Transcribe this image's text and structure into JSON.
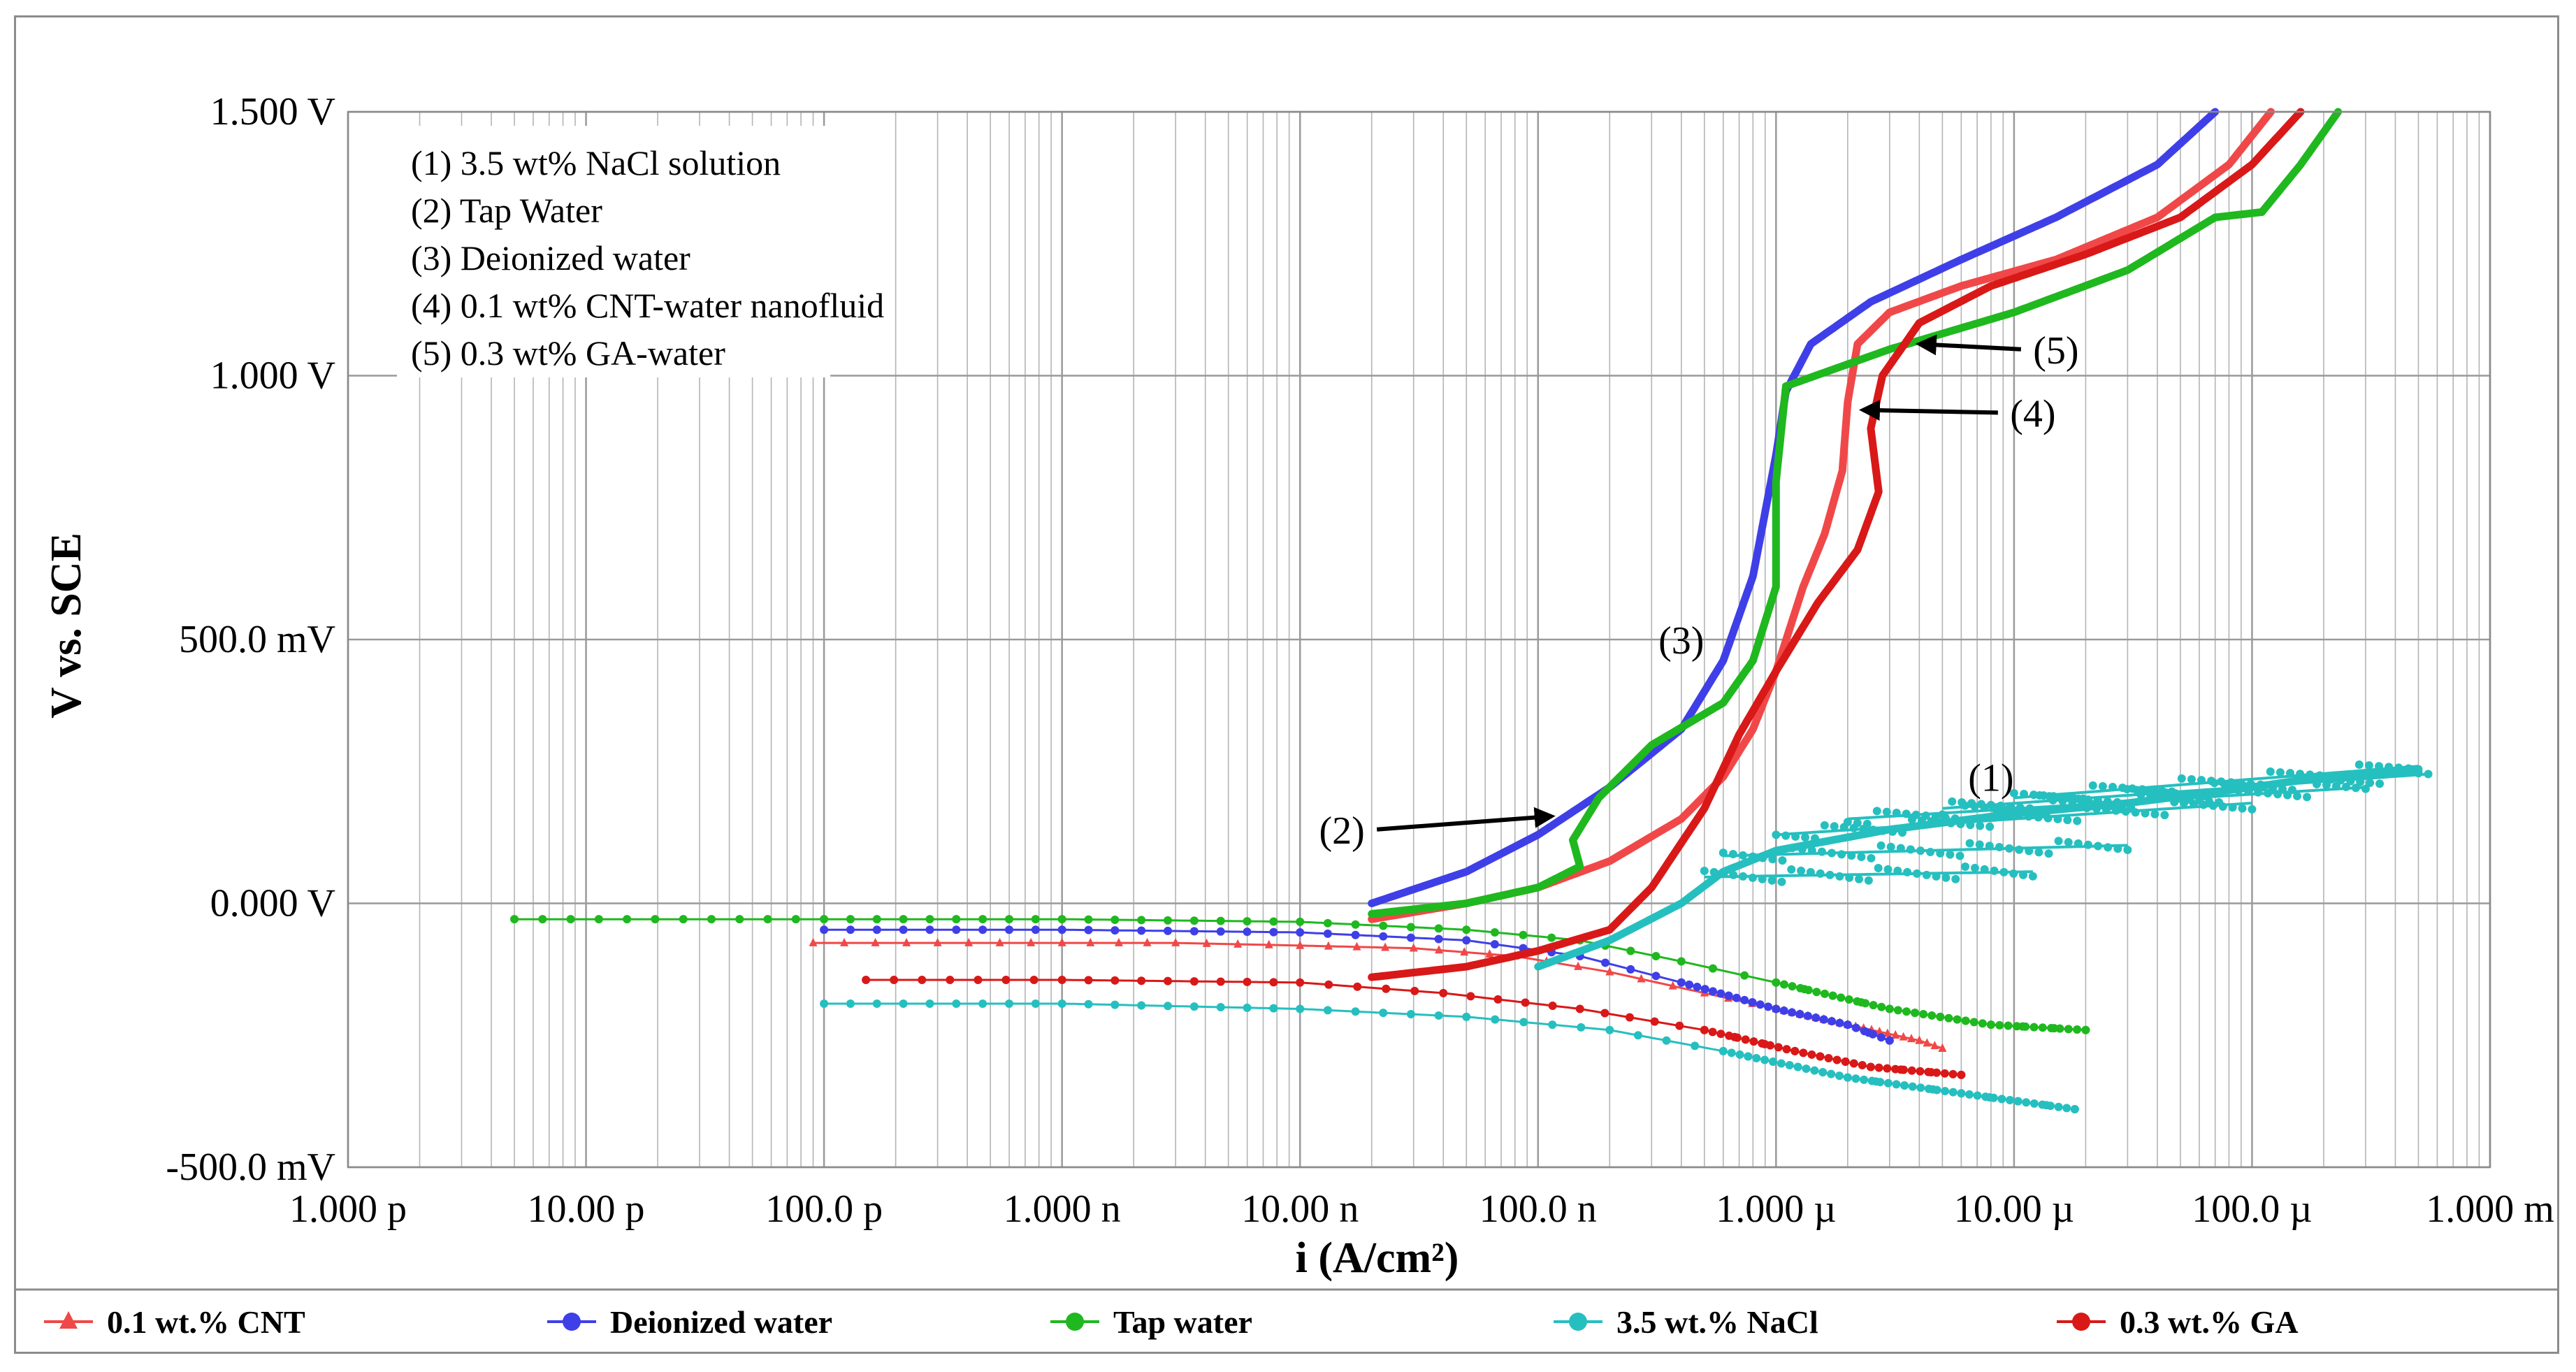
{
  "chart_data": {
    "type": "line",
    "title": "",
    "xlabel": "i (A/cm²)",
    "ylabel": "V vs. SCE",
    "xscale": "log",
    "xlim": [
      1e-12,
      0.001
    ],
    "ylim": [
      -0.5,
      1.5
    ],
    "x_tick_values": [
      1e-12,
      1e-11,
      1e-10,
      1e-09,
      1e-08,
      1e-07,
      1e-06,
      1e-05,
      0.0001,
      0.001
    ],
    "x_tick_labels": [
      "1.000 p",
      "10.00 p",
      "100.0 p",
      "1.000 n",
      "10.00 n",
      "100.0 n",
      "1.000 µ",
      "10.00 µ",
      "100.0 µ",
      "1.000 m"
    ],
    "y_tick_values": [
      1.5,
      1.0,
      0.5,
      0.0,
      -0.5
    ],
    "y_tick_labels": [
      "1.500 V",
      "1.000 V",
      "500.0 mV",
      "0.000 V",
      "-500.0 mV"
    ],
    "grid": true,
    "legend_position": "bottom",
    "annotation_box": [
      "(1) 3.5 wt% NaCl solution",
      "(2) Tap Water",
      "(3) Deionized water",
      "(4) 0.1 wt% CNT-water nanofluid",
      "(5) 0.3 wt% GA-water"
    ],
    "curve_labels": [
      {
        "text": "(1)",
        "x": 8e-06,
        "y": 0.24
      },
      {
        "text": "(2)",
        "x": 1.5e-08,
        "y": 0.14,
        "arrow_to": [
          1.2e-07,
          0.165
        ]
      },
      {
        "text": "(3)",
        "x": 4e-07,
        "y": 0.5
      },
      {
        "text": "(4)",
        "x": 1.2e-05,
        "y": 0.93,
        "arrow_to": [
          2.2e-06,
          0.935
        ]
      },
      {
        "text": "(5)",
        "x": 1.5e-05,
        "y": 1.05,
        "arrow_to": [
          3.8e-06,
          1.06
        ]
      }
    ],
    "series": [
      {
        "name": "0.1 wt.% CNT",
        "color": "#f04848",
        "marker": "triangle",
        "cathodic": [
          [
            9e-11,
            -0.075
          ],
          [
            3e-10,
            -0.075
          ],
          [
            1e-09,
            -0.075
          ],
          [
            3e-09,
            -0.075
          ],
          [
            1e-08,
            -0.08
          ],
          [
            3e-08,
            -0.085
          ],
          [
            8e-08,
            -0.1
          ],
          [
            2e-07,
            -0.13
          ],
          [
            5e-07,
            -0.17
          ],
          [
            1e-06,
            -0.2
          ],
          [
            2e-06,
            -0.23
          ],
          [
            4e-06,
            -0.26
          ],
          [
            5e-06,
            -0.275
          ]
        ],
        "anodic": [
          [
            2e-08,
            -0.03
          ],
          [
            5e-08,
            0.0
          ],
          [
            1e-07,
            0.03
          ],
          [
            2e-07,
            0.08
          ],
          [
            4e-07,
            0.16
          ],
          [
            6e-07,
            0.24
          ],
          [
            8e-07,
            0.33
          ],
          [
            1e-06,
            0.44
          ],
          [
            1.3e-06,
            0.6
          ],
          [
            1.6e-06,
            0.7
          ],
          [
            1.9e-06,
            0.82
          ],
          [
            2e-06,
            0.95
          ],
          [
            2.2e-06,
            1.06
          ],
          [
            3e-06,
            1.12
          ],
          [
            6e-06,
            1.17
          ],
          [
            1.5e-05,
            1.22
          ],
          [
            4e-05,
            1.3
          ],
          [
            8e-05,
            1.4
          ],
          [
            0.00012,
            1.5
          ]
        ]
      },
      {
        "name": "Deionized water",
        "color": "#3f3fe8",
        "marker": "circle",
        "cathodic": [
          [
            1e-10,
            -0.05
          ],
          [
            1e-09,
            -0.05
          ],
          [
            1e-08,
            -0.055
          ],
          [
            5e-08,
            -0.07
          ],
          [
            1.5e-07,
            -0.1
          ],
          [
            4e-07,
            -0.15
          ],
          [
            1e-06,
            -0.2
          ],
          [
            2e-06,
            -0.23
          ],
          [
            3e-06,
            -0.26
          ]
        ],
        "anodic": [
          [
            2e-08,
            0.0
          ],
          [
            5e-08,
            0.06
          ],
          [
            1e-07,
            0.13
          ],
          [
            2e-07,
            0.22
          ],
          [
            4e-07,
            0.33
          ],
          [
            6e-07,
            0.46
          ],
          [
            8e-07,
            0.62
          ],
          [
            1e-06,
            0.85
          ],
          [
            1.1e-06,
            0.97
          ],
          [
            1.4e-06,
            1.06
          ],
          [
            2.5e-06,
            1.14
          ],
          [
            6e-06,
            1.22
          ],
          [
            1.5e-05,
            1.3
          ],
          [
            4e-05,
            1.4
          ],
          [
            7e-05,
            1.5
          ]
        ]
      },
      {
        "name": "Tap water",
        "color": "#1fb81f",
        "marker": "circle",
        "cathodic": [
          [
            5e-12,
            -0.03
          ],
          [
            1e-10,
            -0.03
          ],
          [
            1e-09,
            -0.03
          ],
          [
            1e-08,
            -0.035
          ],
          [
            5e-08,
            -0.05
          ],
          [
            1.5e-07,
            -0.07
          ],
          [
            4e-07,
            -0.11
          ],
          [
            1e-06,
            -0.15
          ],
          [
            3e-06,
            -0.2
          ],
          [
            8e-06,
            -0.23
          ],
          [
            2e-05,
            -0.24
          ]
        ],
        "anodic": [
          [
            2e-08,
            -0.02
          ],
          [
            5e-08,
            0.0
          ],
          [
            1e-07,
            0.03
          ],
          [
            1.5e-07,
            0.07
          ],
          [
            1.4e-07,
            0.12
          ],
          [
            1.8e-07,
            0.2
          ],
          [
            3e-07,
            0.3
          ],
          [
            6e-07,
            0.38
          ],
          [
            8e-07,
            0.46
          ],
          [
            1e-06,
            0.6
          ],
          [
            1e-06,
            0.8
          ],
          [
            1.1e-06,
            0.98
          ],
          [
            3e-06,
            1.05
          ],
          [
            1e-05,
            1.12
          ],
          [
            3e-05,
            1.2
          ],
          [
            7e-05,
            1.3
          ],
          [
            0.00011,
            1.31
          ],
          [
            0.00016,
            1.4
          ],
          [
            0.00023,
            1.5
          ]
        ]
      },
      {
        "name": "3.5 wt.% NaCl",
        "color": "#26bfbf",
        "marker": "circle",
        "cathodic": [
          [
            1e-10,
            -0.19
          ],
          [
            1e-09,
            -0.19
          ],
          [
            1e-08,
            -0.2
          ],
          [
            5e-08,
            -0.215
          ],
          [
            2e-07,
            -0.24
          ],
          [
            6e-07,
            -0.28
          ],
          [
            2e-06,
            -0.33
          ],
          [
            6e-06,
            -0.36
          ],
          [
            1.8e-05,
            -0.39
          ]
        ],
        "anodic": [
          [
            1e-07,
            -0.12
          ],
          [
            2e-07,
            -0.07
          ],
          [
            4e-07,
            0.0
          ],
          [
            6e-07,
            0.06
          ],
          [
            1e-06,
            0.1
          ],
          [
            3e-06,
            0.14
          ],
          [
            1e-05,
            0.17
          ],
          [
            3e-05,
            0.19
          ],
          [
            0.0001,
            0.22
          ],
          [
            0.0002,
            0.24
          ],
          [
            0.0005,
            0.25
          ]
        ],
        "scatter_band": [
          [
            [
              5e-07,
              0.05
            ],
            [
              1.2e-05,
              0.06
            ]
          ],
          [
            [
              6e-07,
              0.09
            ],
            [
              3e-05,
              0.11
            ]
          ],
          [
            [
              1e-06,
              0.13
            ],
            [
              0.0001,
              0.19
            ]
          ],
          [
            [
              2e-06,
              0.16
            ],
            [
              0.0003,
              0.22
            ]
          ],
          [
            [
              5e-06,
              0.18
            ],
            [
              0.00055,
              0.245
            ]
          ],
          [
            [
              1e-05,
              0.2
            ],
            [
              0.0005,
              0.26
            ]
          ]
        ]
      },
      {
        "name": "0.3 wt.% GA",
        "color": "#d91818",
        "marker": "circle",
        "cathodic": [
          [
            1.5e-10,
            -0.145
          ],
          [
            1e-09,
            -0.145
          ],
          [
            1e-08,
            -0.15
          ],
          [
            4e-08,
            -0.17
          ],
          [
            1.5e-07,
            -0.2
          ],
          [
            5e-07,
            -0.24
          ],
          [
            1.2e-06,
            -0.28
          ],
          [
            2.5e-06,
            -0.31
          ],
          [
            6e-06,
            -0.325
          ]
        ],
        "anodic": [
          [
            2e-08,
            -0.14
          ],
          [
            5e-08,
            -0.12
          ],
          [
            1e-07,
            -0.09
          ],
          [
            2e-07,
            -0.05
          ],
          [
            3e-07,
            0.03
          ],
          [
            5e-07,
            0.18
          ],
          [
            7e-07,
            0.32
          ],
          [
            1e-06,
            0.44
          ],
          [
            1.5e-06,
            0.57
          ],
          [
            2.2e-06,
            0.67
          ],
          [
            2.7e-06,
            0.78
          ],
          [
            2.5e-06,
            0.9
          ],
          [
            2.8e-06,
            1.0
          ],
          [
            4e-06,
            1.1
          ],
          [
            8e-06,
            1.17
          ],
          [
            2e-05,
            1.23
          ],
          [
            5e-05,
            1.3
          ],
          [
            0.0001,
            1.4
          ],
          [
            0.00016,
            1.5
          ]
        ]
      }
    ]
  }
}
